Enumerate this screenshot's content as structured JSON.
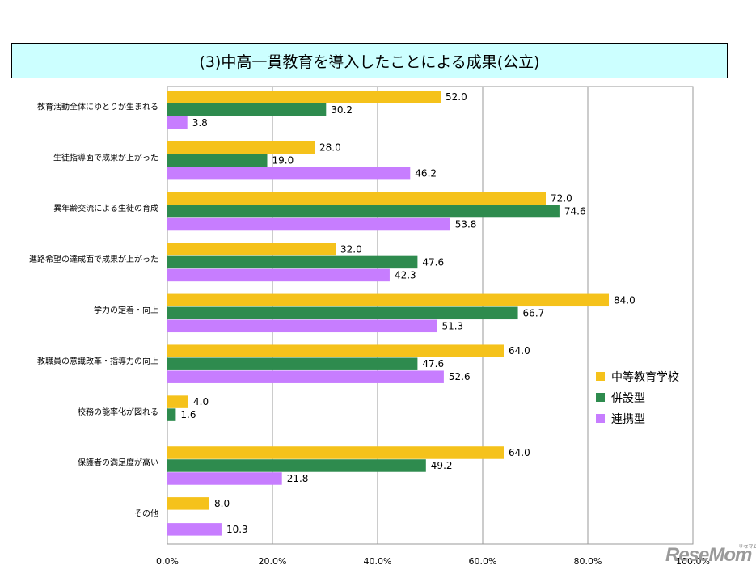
{
  "chart_data": {
    "type": "bar",
    "orientation": "horizontal",
    "title": "(3)中高一貫教育を導入したことによる成果(公立)",
    "categories": [
      "教育活動全体にゆとりが生まれる",
      "生徒指導面で成果が上がった",
      "異年齢交流による生徒の育成",
      "進路希望の達成面で成果が上がった",
      "学力の定着・向上",
      "教職員の意識改革・指導力の向上",
      "校務の能率化が図れる",
      "保護者の満足度が高い",
      "その他"
    ],
    "series": [
      {
        "name": "中等教育学校",
        "color": "#f5c21b",
        "values": [
          52.0,
          28.0,
          72.0,
          32.0,
          84.0,
          64.0,
          4.0,
          64.0,
          8.0
        ]
      },
      {
        "name": "併設型",
        "color": "#2e8b4e",
        "values": [
          30.2,
          19.0,
          74.6,
          47.6,
          66.7,
          47.6,
          1.6,
          49.2,
          null
        ]
      },
      {
        "name": "連携型",
        "color": "#c77dff",
        "values": [
          3.8,
          46.2,
          53.8,
          42.3,
          51.3,
          52.6,
          null,
          21.8,
          10.3
        ]
      }
    ],
    "xlim": [
      0,
      100
    ],
    "xticks": [
      "0.0%",
      "20.0%",
      "40.0%",
      "60.0%",
      "80.0%",
      "100.0%"
    ],
    "xlabel": "",
    "ylabel": "",
    "grid": true,
    "legend_position": "right"
  },
  "watermark": "ReseMom",
  "watermark_kana": "リセマム"
}
